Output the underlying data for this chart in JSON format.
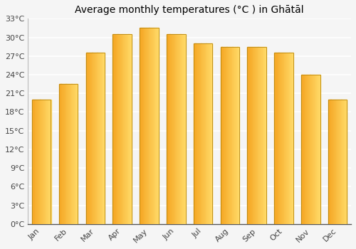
{
  "title": "Average monthly temperatures (°C ) in Ghātāl",
  "months": [
    "Jan",
    "Feb",
    "Mar",
    "Apr",
    "May",
    "Jun",
    "Jul",
    "Aug",
    "Sep",
    "Oct",
    "Nov",
    "Dec"
  ],
  "temperatures": [
    20.0,
    22.5,
    27.5,
    30.5,
    31.5,
    30.5,
    29.0,
    28.5,
    28.5,
    27.5,
    24.0,
    20.0
  ],
  "ylim": [
    0,
    33
  ],
  "yticks": [
    0,
    3,
    6,
    9,
    12,
    15,
    18,
    21,
    24,
    27,
    30,
    33
  ],
  "ytick_labels": [
    "0°C",
    "3°C",
    "6°C",
    "9°C",
    "12°C",
    "15°C",
    "18°C",
    "21°C",
    "24°C",
    "27°C",
    "30°C",
    "33°C"
  ],
  "bar_color_left": "#F5A623",
  "bar_color_right": "#FFD966",
  "bar_edge_color": "#B8860B",
  "background_color": "#f5f5f5",
  "grid_color": "#ffffff",
  "title_fontsize": 10,
  "tick_fontsize": 8,
  "figsize": [
    5.0,
    3.5
  ],
  "dpi": 100
}
